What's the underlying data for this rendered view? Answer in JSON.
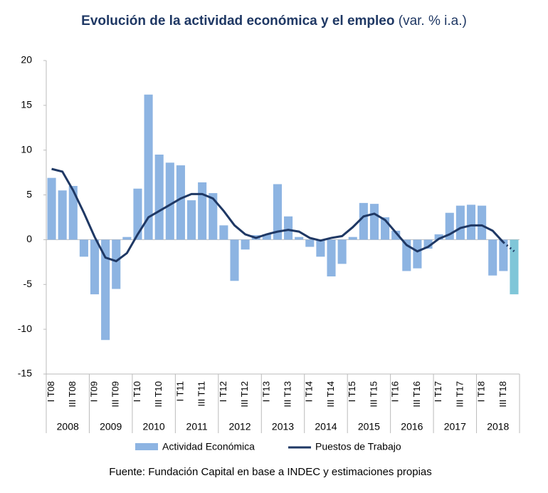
{
  "chart_data": {
    "type": "bar_line",
    "title": "Evolución de la actividad económica y el empleo",
    "subtitle": "(var. % i.a.)",
    "source": "Fuente: Fundación Capital en base a INDEC y estimaciones propias",
    "categories": [
      "I T08",
      null,
      "III T08",
      null,
      "I T09",
      null,
      "III T09",
      null,
      "I T10",
      null,
      "III T10",
      null,
      "I T11",
      null,
      "III T11",
      null,
      "I T12",
      null,
      "III T12",
      null,
      "I T13",
      null,
      "III T13",
      null,
      "I T14",
      null,
      "III T14",
      null,
      "I T15",
      null,
      "III T15",
      null,
      "I T16",
      null,
      "III T16",
      null,
      "I T17",
      null,
      "III T17",
      null,
      "I T18",
      null,
      "III T18",
      null
    ],
    "groups": [
      "2008",
      "2009",
      "2010",
      "2011",
      "2012",
      "2013",
      "2014",
      "2015",
      "2016",
      "2017",
      "2018"
    ],
    "series": [
      {
        "name": "Actividad Económica",
        "type": "bar",
        "color": "#8db4e2",
        "projected_color": "#7fc6d8",
        "values": [
          6.9,
          5.5,
          6.0,
          -1.9,
          -6.1,
          -11.2,
          -5.5,
          0.3,
          5.7,
          16.2,
          9.5,
          8.6,
          8.3,
          4.4,
          6.4,
          5.2,
          1.6,
          -4.6,
          -1.1,
          0.5,
          0.6,
          6.2,
          2.6,
          0.3,
          -0.8,
          -1.9,
          -4.1,
          -2.7,
          0.3,
          4.1,
          4.0,
          2.5,
          1.0,
          -3.5,
          -3.2,
          -1.0,
          0.6,
          3.0,
          3.8,
          3.9,
          3.8,
          -4.0,
          -3.5,
          -6.1
        ]
      },
      {
        "name": "Puestos de Trabajo",
        "type": "line",
        "color": "#1f3864",
        "values": [
          7.9,
          7.6,
          5.5,
          3.0,
          0.3,
          -2.0,
          -2.4,
          -1.5,
          0.6,
          2.5,
          3.2,
          3.9,
          4.6,
          5.1,
          5.1,
          4.6,
          3.2,
          1.6,
          0.6,
          0.2,
          0.6,
          0.9,
          1.1,
          0.9,
          0.2,
          -0.1,
          0.2,
          0.4,
          1.4,
          2.6,
          2.9,
          2.2,
          0.8,
          -0.6,
          -1.3,
          -0.8,
          0.1,
          0.6,
          1.3,
          1.6,
          1.6,
          1.0,
          -0.3,
          -1.3
        ]
      }
    ],
    "projected_index": 43,
    "ylim": [
      -15,
      20
    ],
    "yticks": [
      -15,
      -10,
      -5,
      0,
      5,
      10,
      15,
      20
    ]
  }
}
